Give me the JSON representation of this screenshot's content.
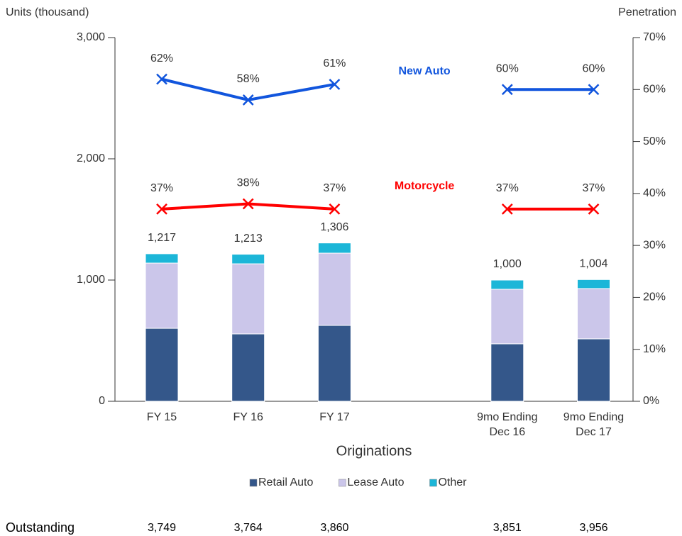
{
  "chart_data": {
    "type": "bar",
    "ylabel": "Units (thousand)",
    "y2label": "Penetration",
    "xlabel": "Originations",
    "categories": [
      "FY 15",
      "FY 16",
      "FY 17",
      null,
      "9mo Ending Dec 16",
      "9mo Ending Dec 17"
    ],
    "ylim": [
      0,
      3000
    ],
    "yticks": [
      0,
      {
        "value": 1000,
        "label": "1,000"
      },
      {
        "value": 2000,
        "label": "2,000"
      },
      {
        "value": 3000,
        "label": "3,000"
      }
    ],
    "y2lim": [
      0,
      70
    ],
    "y2ticks": [
      {
        "value": 0,
        "label": "0%"
      },
      {
        "value": 10,
        "label": "10%"
      },
      {
        "value": 20,
        "label": "20%"
      },
      {
        "value": 30,
        "label": "30%"
      },
      {
        "value": 40,
        "label": "40%"
      },
      {
        "value": 50,
        "label": "50%"
      },
      {
        "value": 60,
        "label": "60%"
      },
      {
        "value": 70,
        "label": "70%"
      }
    ],
    "series": [
      {
        "name": "Retail Auto",
        "color": "#34578a",
        "values": [
          602,
          556,
          626,
          null,
          474,
          515
        ]
      },
      {
        "name": "Lease Auto",
        "color": "#cbc6ea",
        "values": [
          538,
          578,
          596,
          null,
          450,
          415
        ]
      },
      {
        "name": "Other",
        "color": "#1cb6d8",
        "values": [
          77,
          79,
          84,
          null,
          76,
          74
        ]
      },
      {
        "name": "New Auto",
        "type": "line",
        "axis": "y2",
        "color": "#1155dd",
        "values": [
          62,
          58,
          61,
          null,
          60,
          60
        ],
        "value_labels": [
          "62%",
          "58%",
          "61%",
          null,
          "60%",
          "60%"
        ]
      },
      {
        "name": "Motorcycle",
        "type": "line",
        "axis": "y2",
        "color": "#ff0000",
        "values": [
          37,
          38,
          37,
          null,
          37,
          37
        ],
        "value_labels": [
          "37%",
          "38%",
          "37%",
          null,
          "37%",
          "37%"
        ]
      }
    ],
    "totals": {
      "values": [
        1217,
        1213,
        1306,
        null,
        1000,
        1004
      ],
      "value_labels": [
        "1,217",
        "1,213",
        "1,306",
        null,
        "1,000",
        "1,004"
      ]
    },
    "outstanding": {
      "label": "Outstanding",
      "values": [
        3749,
        3764,
        3860,
        null,
        3851,
        3956
      ],
      "value_labels": [
        "3,749",
        "3,764",
        "3,860",
        null,
        "3,851",
        "3,956"
      ]
    },
    "legend": "bottom"
  }
}
